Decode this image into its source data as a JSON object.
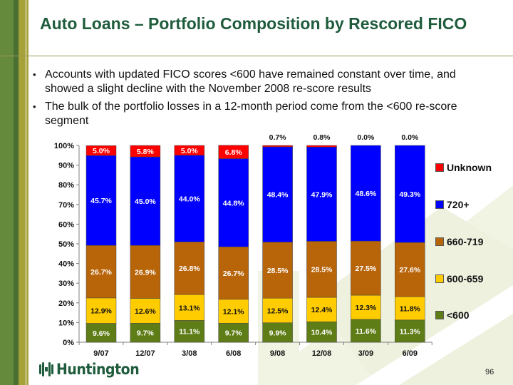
{
  "slide": {
    "title": "Auto Loans – Portfolio Composition by Rescored FICO",
    "bullets": [
      "Accounts with updated FICO scores <600 have remained constant over time, and showed a slight decline with the November 2008 re-score results",
      "The bulk of the portfolio losses in a 12-month period come from the <600 re-score segment"
    ],
    "logo_text": "Huntington",
    "page_number": "96",
    "colors": {
      "title": "#1f5c3c",
      "stripe_green": "#668a3c",
      "stripe_olive": "#a6a23a"
    }
  },
  "chart_data": {
    "type": "bar",
    "stacked": true,
    "title": "",
    "xlabel": "",
    "ylabel": "",
    "ylim": [
      0,
      100
    ],
    "yticks": [
      "0%",
      "10%",
      "20%",
      "30%",
      "40%",
      "50%",
      "60%",
      "70%",
      "80%",
      "90%",
      "100%"
    ],
    "grid": false,
    "legend_position": "right",
    "categories": [
      "9/07",
      "12/07",
      "3/08",
      "6/08",
      "9/08",
      "12/08",
      "3/09",
      "6/09"
    ],
    "series": [
      {
        "name": "<600",
        "color": "#5e7d16",
        "label_color": "#ffffff",
        "values": [
          9.6,
          9.7,
          11.1,
          9.7,
          9.9,
          10.4,
          11.6,
          11.3
        ],
        "labels": [
          "9.6%",
          "9.7%",
          "11.1%",
          "9.7%",
          "9.9%",
          "10.4%",
          "11.6%",
          "11.3%"
        ]
      },
      {
        "name": "600-659",
        "color": "#ffcc00",
        "label_color": "#111111",
        "values": [
          12.9,
          12.6,
          13.1,
          12.1,
          12.5,
          12.4,
          12.3,
          11.8
        ],
        "labels": [
          "12.9%",
          "12.6%",
          "13.1%",
          "12.1%",
          "12.5%",
          "12.4%",
          "12.3%",
          "11.8%"
        ]
      },
      {
        "name": "660-719",
        "color": "#b8650a",
        "label_color": "#ffffff",
        "values": [
          26.7,
          26.9,
          26.8,
          26.7,
          28.5,
          28.5,
          27.5,
          27.6
        ],
        "labels": [
          "26.7%",
          "26.9%",
          "26.8%",
          "26.7%",
          "28.5%",
          "28.5%",
          "27.5%",
          "27.6%"
        ]
      },
      {
        "name": "720+",
        "color": "#0000ff",
        "label_color": "#ffffff",
        "values": [
          45.7,
          45.0,
          44.0,
          44.8,
          48.4,
          47.9,
          48.6,
          49.3
        ],
        "labels": [
          "45.7%",
          "45.0%",
          "44.0%",
          "44.8%",
          "48.4%",
          "47.9%",
          "48.6%",
          "49.3%"
        ]
      },
      {
        "name": "Unknown",
        "color": "#ff0000",
        "label_color": "#ffffff",
        "values": [
          5.0,
          5.8,
          5.0,
          6.8,
          0.7,
          0.8,
          0.0,
          0.0
        ],
        "labels": [
          "5.0%",
          "5.8%",
          "5.0%",
          "6.8%",
          "0.7%",
          "0.8%",
          "0.0%",
          "0.0%"
        ]
      }
    ],
    "legend": [
      "Unknown",
      "720+",
      "660-719",
      "600-659",
      "<600"
    ]
  }
}
